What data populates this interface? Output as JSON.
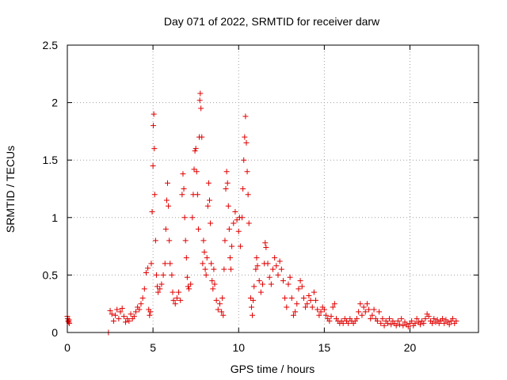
{
  "chart_data": {
    "type": "scatter",
    "title": "Day 071 of 2022, SRMTID for receiver darw",
    "xlabel": "GPS time / hours",
    "ylabel": "SRMTID / TECUs",
    "xlim": [
      0,
      24
    ],
    "ylim": [
      0,
      2.5
    ],
    "x_ticks": [
      0,
      5,
      10,
      15,
      20
    ],
    "x_tick_labels": [
      "0",
      "5",
      "10",
      "15",
      "20"
    ],
    "y_ticks": [
      0,
      0.5,
      1,
      1.5,
      2,
      2.5
    ],
    "y_tick_labels": [
      "0",
      "0.5",
      "1",
      "1.5",
      "2",
      "2.5"
    ],
    "grid": true,
    "marker": "+",
    "color": "#e00000",
    "series": [
      {
        "name": "SRMTID",
        "points": [
          [
            0.0,
            0.14
          ],
          [
            0.02,
            0.12
          ],
          [
            0.05,
            0.1
          ],
          [
            0.08,
            0.09
          ],
          [
            0.1,
            0.11
          ],
          [
            0.12,
            0.08
          ],
          [
            2.4,
            0.0
          ],
          [
            2.5,
            0.19
          ],
          [
            2.6,
            0.16
          ],
          [
            2.7,
            0.1
          ],
          [
            2.8,
            0.15
          ],
          [
            2.9,
            0.2
          ],
          [
            3.0,
            0.12
          ],
          [
            3.1,
            0.18
          ],
          [
            3.2,
            0.21
          ],
          [
            3.3,
            0.14
          ],
          [
            3.4,
            0.09
          ],
          [
            3.5,
            0.12
          ],
          [
            3.6,
            0.1
          ],
          [
            3.7,
            0.16
          ],
          [
            3.8,
            0.12
          ],
          [
            3.9,
            0.14
          ],
          [
            4.0,
            0.18
          ],
          [
            4.1,
            0.22
          ],
          [
            4.2,
            0.2
          ],
          [
            4.3,
            0.25
          ],
          [
            4.4,
            0.3
          ],
          [
            4.5,
            0.38
          ],
          [
            4.6,
            0.52
          ],
          [
            4.7,
            0.56
          ],
          [
            4.75,
            0.2
          ],
          [
            4.8,
            0.15
          ],
          [
            4.85,
            0.18
          ],
          [
            4.9,
            0.6
          ],
          [
            4.95,
            1.05
          ],
          [
            5.0,
            1.45
          ],
          [
            5.02,
            1.8
          ],
          [
            5.05,
            1.9
          ],
          [
            5.08,
            1.6
          ],
          [
            5.1,
            1.2
          ],
          [
            5.15,
            0.8
          ],
          [
            5.2,
            0.5
          ],
          [
            5.25,
            0.4
          ],
          [
            5.3,
            0.35
          ],
          [
            5.4,
            0.38
          ],
          [
            5.5,
            0.42
          ],
          [
            5.6,
            0.5
          ],
          [
            5.7,
            0.6
          ],
          [
            5.75,
            0.9
          ],
          [
            5.8,
            1.15
          ],
          [
            5.85,
            1.3
          ],
          [
            5.9,
            1.1
          ],
          [
            5.95,
            0.8
          ],
          [
            6.0,
            0.6
          ],
          [
            6.1,
            0.5
          ],
          [
            6.15,
            0.35
          ],
          [
            6.2,
            0.28
          ],
          [
            6.3,
            0.25
          ],
          [
            6.4,
            0.3
          ],
          [
            6.5,
            0.35
          ],
          [
            6.6,
            0.28
          ],
          [
            6.7,
            1.2
          ],
          [
            6.75,
            1.38
          ],
          [
            6.8,
            1.25
          ],
          [
            6.85,
            1.0
          ],
          [
            6.9,
            0.8
          ],
          [
            6.95,
            0.65
          ],
          [
            7.0,
            0.48
          ],
          [
            7.05,
            0.4
          ],
          [
            7.1,
            0.38
          ],
          [
            7.2,
            0.42
          ],
          [
            7.3,
            1.0
          ],
          [
            7.35,
            1.2
          ],
          [
            7.4,
            1.42
          ],
          [
            7.45,
            1.58
          ],
          [
            7.5,
            1.6
          ],
          [
            7.55,
            1.4
          ],
          [
            7.6,
            1.2
          ],
          [
            7.65,
            0.9
          ],
          [
            7.7,
            1.7
          ],
          [
            7.73,
            2.02
          ],
          [
            7.76,
            2.08
          ],
          [
            7.8,
            1.95
          ],
          [
            7.85,
            1.7
          ],
          [
            7.9,
            0.6
          ],
          [
            7.95,
            0.8
          ],
          [
            8.0,
            0.7
          ],
          [
            8.05,
            0.55
          ],
          [
            8.1,
            0.5
          ],
          [
            8.15,
            0.65
          ],
          [
            8.2,
            1.1
          ],
          [
            8.25,
            1.3
          ],
          [
            8.3,
            1.15
          ],
          [
            8.35,
            0.95
          ],
          [
            8.4,
            0.6
          ],
          [
            8.45,
            0.45
          ],
          [
            8.5,
            0.38
          ],
          [
            8.55,
            0.55
          ],
          [
            8.6,
            0.42
          ],
          [
            8.7,
            0.28
          ],
          [
            8.8,
            0.2
          ],
          [
            8.9,
            0.25
          ],
          [
            9.0,
            0.18
          ],
          [
            9.05,
            0.3
          ],
          [
            9.1,
            0.15
          ],
          [
            9.15,
            0.55
          ],
          [
            9.2,
            0.8
          ],
          [
            9.25,
            1.25
          ],
          [
            9.3,
            1.4
          ],
          [
            9.35,
            1.3
          ],
          [
            9.4,
            1.1
          ],
          [
            9.45,
            0.9
          ],
          [
            9.5,
            0.65
          ],
          [
            9.55,
            0.55
          ],
          [
            9.6,
            0.75
          ],
          [
            9.7,
            0.95
          ],
          [
            9.8,
            1.05
          ],
          [
            9.9,
            0.98
          ],
          [
            10.0,
            0.88
          ],
          [
            10.05,
            1.0
          ],
          [
            10.1,
            0.75
          ],
          [
            10.2,
            1.0
          ],
          [
            10.25,
            1.25
          ],
          [
            10.3,
            1.5
          ],
          [
            10.35,
            1.7
          ],
          [
            10.4,
            1.88
          ],
          [
            10.45,
            1.65
          ],
          [
            10.5,
            1.4
          ],
          [
            10.55,
            1.2
          ],
          [
            10.6,
            0.95
          ],
          [
            10.7,
            0.3
          ],
          [
            10.75,
            0.22
          ],
          [
            10.8,
            0.15
          ],
          [
            10.85,
            0.28
          ],
          [
            10.9,
            0.4
          ],
          [
            11.0,
            0.55
          ],
          [
            11.05,
            0.65
          ],
          [
            11.1,
            0.58
          ],
          [
            11.2,
            0.45
          ],
          [
            11.3,
            0.35
          ],
          [
            11.4,
            0.42
          ],
          [
            11.5,
            0.6
          ],
          [
            11.55,
            0.78
          ],
          [
            11.6,
            0.74
          ],
          [
            11.7,
            0.6
          ],
          [
            11.8,
            0.48
          ],
          [
            11.9,
            0.42
          ],
          [
            12.0,
            0.55
          ],
          [
            12.1,
            0.65
          ],
          [
            12.2,
            0.58
          ],
          [
            12.3,
            0.5
          ],
          [
            12.4,
            0.62
          ],
          [
            12.5,
            0.55
          ],
          [
            12.6,
            0.45
          ],
          [
            12.7,
            0.3
          ],
          [
            12.8,
            0.22
          ],
          [
            12.9,
            0.42
          ],
          [
            13.0,
            0.48
          ],
          [
            13.1,
            0.3
          ],
          [
            13.2,
            0.15
          ],
          [
            13.3,
            0.18
          ],
          [
            13.4,
            0.25
          ],
          [
            13.5,
            0.38
          ],
          [
            13.6,
            0.45
          ],
          [
            13.7,
            0.4
          ],
          [
            13.8,
            0.3
          ],
          [
            13.9,
            0.22
          ],
          [
            14.0,
            0.25
          ],
          [
            14.1,
            0.32
          ],
          [
            14.2,
            0.28
          ],
          [
            14.3,
            0.22
          ],
          [
            14.4,
            0.35
          ],
          [
            14.5,
            0.28
          ],
          [
            14.6,
            0.2
          ],
          [
            14.7,
            0.15
          ],
          [
            14.8,
            0.18
          ],
          [
            14.9,
            0.22
          ],
          [
            15.0,
            0.2
          ],
          [
            15.1,
            0.15
          ],
          [
            15.2,
            0.12
          ],
          [
            15.3,
            0.1
          ],
          [
            15.4,
            0.14
          ],
          [
            15.5,
            0.22
          ],
          [
            15.6,
            0.25
          ],
          [
            15.7,
            0.12
          ],
          [
            15.8,
            0.1
          ],
          [
            15.9,
            0.08
          ],
          [
            16.0,
            0.1
          ],
          [
            16.1,
            0.08
          ],
          [
            16.2,
            0.12
          ],
          [
            16.3,
            0.1
          ],
          [
            16.4,
            0.08
          ],
          [
            16.5,
            0.12
          ],
          [
            16.6,
            0.1
          ],
          [
            16.7,
            0.08
          ],
          [
            16.8,
            0.1
          ],
          [
            16.9,
            0.12
          ],
          [
            17.0,
            0.18
          ],
          [
            17.1,
            0.25
          ],
          [
            17.2,
            0.15
          ],
          [
            17.3,
            0.22
          ],
          [
            17.4,
            0.18
          ],
          [
            17.5,
            0.25
          ],
          [
            17.6,
            0.2
          ],
          [
            17.7,
            0.12
          ],
          [
            17.8,
            0.15
          ],
          [
            17.9,
            0.2
          ],
          [
            18.0,
            0.12
          ],
          [
            18.1,
            0.1
          ],
          [
            18.2,
            0.18
          ],
          [
            18.3,
            0.08
          ],
          [
            18.4,
            0.12
          ],
          [
            18.5,
            0.06
          ],
          [
            18.6,
            0.1
          ],
          [
            18.7,
            0.08
          ],
          [
            18.8,
            0.12
          ],
          [
            18.9,
            0.07
          ],
          [
            19.0,
            0.1
          ],
          [
            19.1,
            0.08
          ],
          [
            19.2,
            0.06
          ],
          [
            19.3,
            0.1
          ],
          [
            19.4,
            0.07
          ],
          [
            19.5,
            0.12
          ],
          [
            19.6,
            0.06
          ],
          [
            19.7,
            0.09
          ],
          [
            19.8,
            0.07
          ],
          [
            19.9,
            0.05
          ],
          [
            20.0,
            0.08
          ],
          [
            20.1,
            0.1
          ],
          [
            20.2,
            0.06
          ],
          [
            20.3,
            0.08
          ],
          [
            20.4,
            0.12
          ],
          [
            20.5,
            0.09
          ],
          [
            20.6,
            0.07
          ],
          [
            20.7,
            0.1
          ],
          [
            20.8,
            0.08
          ],
          [
            20.9,
            0.12
          ],
          [
            21.0,
            0.16
          ],
          [
            21.1,
            0.14
          ],
          [
            21.2,
            0.1
          ],
          [
            21.3,
            0.08
          ],
          [
            21.4,
            0.12
          ],
          [
            21.5,
            0.09
          ],
          [
            21.6,
            0.11
          ],
          [
            21.7,
            0.08
          ],
          [
            21.8,
            0.1
          ],
          [
            21.9,
            0.12
          ],
          [
            22.0,
            0.08
          ],
          [
            22.1,
            0.11
          ],
          [
            22.2,
            0.09
          ],
          [
            22.3,
            0.07
          ],
          [
            22.4,
            0.1
          ],
          [
            22.5,
            0.12
          ],
          [
            22.6,
            0.08
          ],
          [
            22.7,
            0.1
          ]
        ]
      }
    ]
  }
}
